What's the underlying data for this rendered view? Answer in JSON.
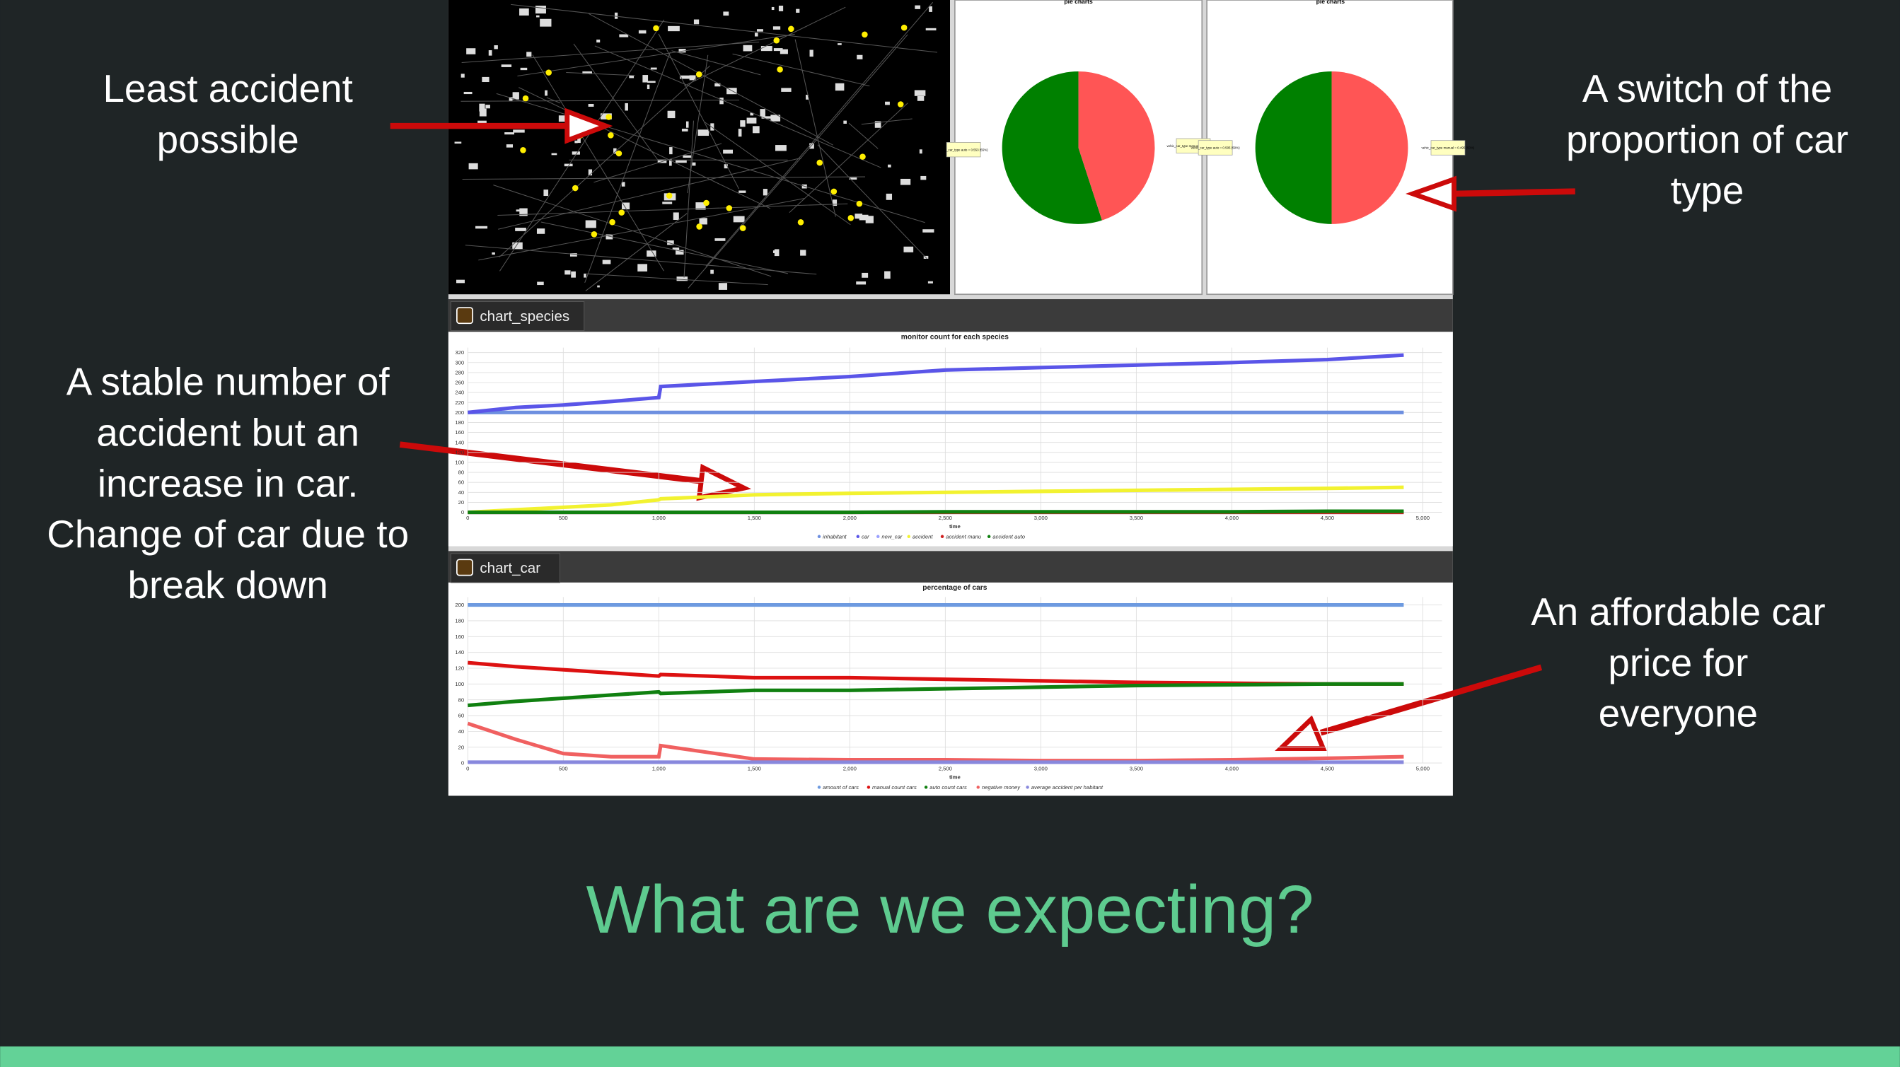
{
  "slide": {
    "title": "What are we expecting?",
    "annotations": [
      {
        "lines": [
          "Least accident",
          "possible"
        ]
      },
      {
        "lines": [
          "A switch of the",
          "proportion of car",
          "type"
        ]
      },
      {
        "lines": [
          "A stable number of",
          "accident but an",
          "increase in car.",
          "Change of car due to",
          "break down"
        ]
      },
      {
        "lines": [
          "An affordable car",
          "price for",
          "everyone"
        ]
      }
    ]
  },
  "pies": [
    {
      "title": "pie charts",
      "values": [
        55,
        45
      ],
      "value_labels": [
        "vehic_car_type auto = 0.553 (55%)",
        "vehic_car_type manual = 0.447 (45%)"
      ],
      "colors": [
        "#008000",
        "#ff5555"
      ]
    },
    {
      "title": "pie charts",
      "values": [
        50,
        50
      ],
      "value_labels": [
        "vehic_car_type auto = 0.505 (50%)",
        "vehic_car_type manual = 0.495 (50%)"
      ],
      "colors": [
        "#008000",
        "#ff5555"
      ]
    }
  ],
  "charts": [
    {
      "type": "line",
      "tab": "chart_species",
      "title": "monitor count for each species",
      "x_label": "time",
      "x": [
        0,
        250,
        500,
        750,
        1000,
        1010,
        1500,
        2000,
        2500,
        3000,
        3500,
        4000,
        4500,
        4900
      ],
      "xlim": [
        0,
        5100
      ],
      "xticks": [
        0,
        500,
        {
          "value": 1000,
          "label": "1,000"
        },
        {
          "value": 1500,
          "label": "1,500"
        },
        {
          "value": 2000,
          "label": "2,000"
        },
        {
          "value": 2500,
          "label": "2,500"
        },
        {
          "value": 3000,
          "label": "3,000"
        },
        {
          "value": 3500,
          "label": "3,500"
        },
        {
          "value": 4000,
          "label": "4,000"
        },
        {
          "value": 4500,
          "label": "4,500"
        },
        {
          "value": 5000,
          "label": "5,000"
        }
      ],
      "ylim": [
        0,
        330
      ],
      "yticks": [
        0,
        20,
        40,
        60,
        80,
        100,
        120,
        140,
        160,
        180,
        200,
        220,
        240,
        260,
        280,
        300,
        320
      ],
      "series": [
        {
          "name": "inhabitant",
          "color": "#6d8fe0",
          "values": [
            200,
            200,
            200,
            200,
            200,
            200,
            200,
            200,
            200,
            200,
            200,
            200,
            200,
            200
          ]
        },
        {
          "name": "car",
          "color": "#5a55e8",
          "values": [
            200,
            210,
            215,
            222,
            230,
            252,
            262,
            272,
            285,
            290,
            295,
            300,
            306,
            315
          ]
        },
        {
          "name": "new_car",
          "color": "#9aa0ff",
          "values": [
            0,
            0,
            0,
            0,
            0,
            0,
            0,
            0,
            0,
            0,
            0,
            0,
            0,
            0
          ]
        },
        {
          "name": "accident",
          "color": "#f2f230",
          "values": [
            0,
            5,
            10,
            15,
            25,
            27,
            35,
            38,
            40,
            42,
            44,
            46,
            48,
            50
          ]
        },
        {
          "name": "accident manu",
          "color": "#d02020",
          "values": [
            0,
            0,
            0,
            0,
            0,
            0,
            0,
            0,
            0,
            0,
            0,
            0,
            0,
            0
          ]
        },
        {
          "name": "accident auto",
          "color": "#108010",
          "values": [
            0,
            0,
            0,
            0,
            0,
            0,
            0,
            0,
            1,
            1,
            1,
            1,
            2,
            2
          ]
        }
      ]
    },
    {
      "type": "line",
      "tab": "chart_car",
      "title": "percentage of cars",
      "x_label": "time",
      "x": [
        0,
        250,
        500,
        750,
        1000,
        1010,
        1500,
        2000,
        2500,
        3000,
        3500,
        4000,
        4500,
        4900
      ],
      "xlim": [
        0,
        5100
      ],
      "xticks": [
        0,
        500,
        {
          "value": 1000,
          "label": "1,000"
        },
        {
          "value": 1500,
          "label": "1,500"
        },
        {
          "value": 2000,
          "label": "2,000"
        },
        {
          "value": 2500,
          "label": "2,500"
        },
        {
          "value": 3000,
          "label": "3,000"
        },
        {
          "value": 3500,
          "label": "3,500"
        },
        {
          "value": 4000,
          "label": "4,000"
        },
        {
          "value": 4500,
          "label": "4,500"
        },
        {
          "value": 5000,
          "label": "5,000"
        }
      ],
      "ylim": [
        0,
        210
      ],
      "yticks": [
        0,
        20,
        40,
        60,
        80,
        100,
        120,
        140,
        160,
        180,
        200
      ],
      "series": [
        {
          "name": "amount of cars",
          "color": "#6d9ae0",
          "values": [
            200,
            200,
            200,
            200,
            200,
            200,
            200,
            200,
            200,
            200,
            200,
            200,
            200,
            200
          ]
        },
        {
          "name": "manual count cars",
          "color": "#dd1111",
          "values": [
            127,
            122,
            118,
            114,
            110,
            112,
            108,
            108,
            106,
            104,
            102,
            101,
            100,
            100
          ]
        },
        {
          "name": "auto count cars",
          "color": "#108010",
          "values": [
            73,
            78,
            82,
            86,
            90,
            88,
            92,
            92,
            94,
            96,
            98,
            99,
            100,
            100
          ]
        },
        {
          "name": "negative money",
          "color": "#f06060",
          "values": [
            50,
            30,
            12,
            8,
            8,
            22,
            5,
            4,
            4,
            3,
            3,
            4,
            6,
            8
          ]
        },
        {
          "name": "average accident per habitant",
          "color": "#8888dd",
          "values": [
            1,
            1,
            1,
            1,
            1,
            1,
            1,
            1,
            1,
            1,
            1,
            1,
            1,
            1
          ]
        }
      ]
    }
  ]
}
